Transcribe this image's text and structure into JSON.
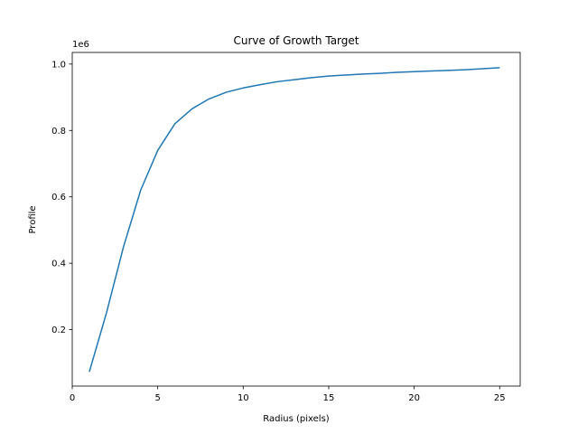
{
  "chart_data": {
    "type": "line",
    "title": "Curve of Growth Target",
    "xlabel": "Radius (pixels)",
    "ylabel": "Profile",
    "y_offset_label": "1e6",
    "xlim": [
      0.0,
      26.2
    ],
    "ylim": [
      0.03,
      1.035
    ],
    "xticks": [
      0,
      5,
      10,
      15,
      20,
      25
    ],
    "yticks": [
      0.2,
      0.4,
      0.6,
      0.8,
      1.0
    ],
    "ytick_labels": [
      "0.2",
      "0.4",
      "0.6",
      "0.8",
      "1.0"
    ],
    "grid": false,
    "line_color": "#1f77b4",
    "series": [
      {
        "x": [
          1,
          2,
          3,
          4,
          5,
          6,
          7,
          8,
          9,
          10,
          11,
          12,
          13,
          14,
          15,
          16,
          17,
          18,
          19,
          20,
          21,
          22,
          23,
          24,
          25
        ],
        "values": [
          0.073,
          0.25,
          0.45,
          0.62,
          0.74,
          0.82,
          0.865,
          0.895,
          0.915,
          0.928,
          0.938,
          0.947,
          0.953,
          0.959,
          0.964,
          0.967,
          0.97,
          0.972,
          0.975,
          0.977,
          0.979,
          0.981,
          0.983,
          0.986,
          0.989
        ]
      }
    ]
  }
}
